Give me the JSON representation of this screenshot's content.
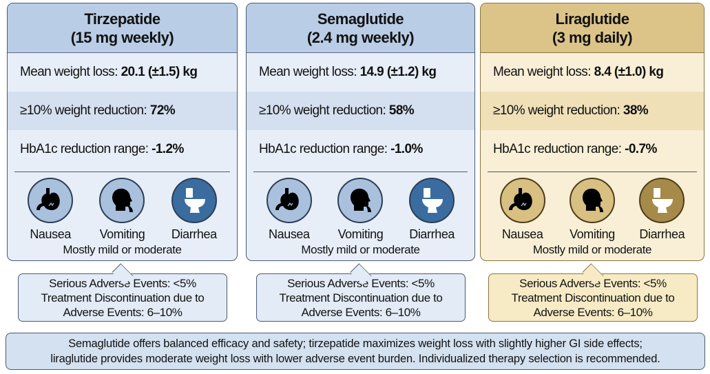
{
  "drugs": [
    {
      "name": "Tirzepatide",
      "dose": "(15 mg weekly)",
      "weight_label": "Mean weight loss: ",
      "weight_value": "20.1 (±1.5) kg",
      "reduction_label": "≥10% weight reduction: ",
      "reduction_value": "72%",
      "hba1c_label": "HbA1c reduction range: ",
      "hba1c_value": "-1.2%"
    },
    {
      "name": "Semaglutide",
      "dose": "(2.4 mg weekly)",
      "weight_label": "Mean weight loss: ",
      "weight_value": "14.9 (±1.2) kg",
      "reduction_label": "≥10% weight reduction: ",
      "reduction_value": "58%",
      "hba1c_label": "HbA1c reduction range: ",
      "hba1c_value": "-1.0%"
    },
    {
      "name": "Liraglutide",
      "dose": "(3 mg daily)",
      "weight_label": "Mean weight loss: ",
      "weight_value": "8.4 (±1.0) kg",
      "reduction_label": "≥10% weight reduction: ",
      "reduction_value": "38%",
      "hba1c_label": "HbA1c reduction range: ",
      "hba1c_value": "-0.7%"
    }
  ],
  "side_effects": {
    "nausea": "Nausea",
    "vomiting": "Vomiting",
    "diarrhea": "Diarrhea",
    "note": "Mostly mild or moderate"
  },
  "callout": {
    "line1": "Serious Adverse Events: <5%",
    "line2": "Treatment Discontinuation due to",
    "line3": "Adverse Events: 6–10%"
  },
  "summary": {
    "line1": "Semaglutide offers balanced efficacy and safety; tirzepatide maximizes weight loss with slightly higher GI side effects;",
    "line2": "liraglutide provides moderate weight loss with lower adverse event burden. Individualized therapy selection is recommended."
  },
  "colors": {
    "blue_header": "#b9cde6",
    "gold_header": "#dcc489",
    "blue_body": "#e7eef8",
    "gold_body": "#f8efd6"
  }
}
